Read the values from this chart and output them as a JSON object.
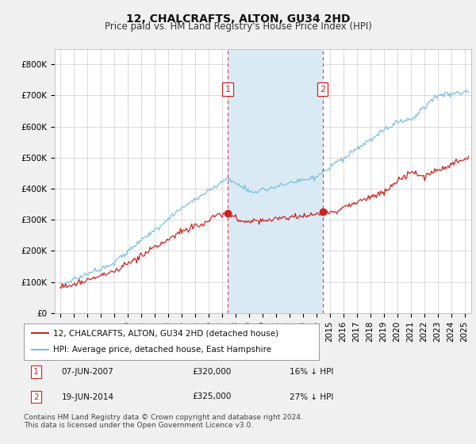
{
  "title": "12, CHALCRAFTS, ALTON, GU34 2HD",
  "subtitle": "Price paid vs. HM Land Registry's House Price Index (HPI)",
  "ylim": [
    0,
    850000
  ],
  "yticks": [
    0,
    100000,
    200000,
    300000,
    400000,
    500000,
    600000,
    700000,
    800000
  ],
  "ytick_labels": [
    "£0",
    "£100K",
    "£200K",
    "£300K",
    "£400K",
    "£500K",
    "£600K",
    "£700K",
    "£800K"
  ],
  "hpi_color": "#7bbfdf",
  "price_color": "#cc2222",
  "shading_color": "#daeaf5",
  "marker1_x": 2007.44,
  "marker2_x": 2014.47,
  "marker1_price": 320000,
  "marker2_price": 325000,
  "legend_label_red": "12, CHALCRAFTS, ALTON, GU34 2HD (detached house)",
  "legend_label_blue": "HPI: Average price, detached house, East Hampshire",
  "footnote": "Contains HM Land Registry data © Crown copyright and database right 2024.\nThis data is licensed under the Open Government Licence v3.0.",
  "background_color": "#f0f0f0",
  "plot_bg_color": "#ffffff",
  "grid_color": "#cccccc",
  "title_fontsize": 10,
  "subtitle_fontsize": 8.5,
  "tick_fontsize": 7.5,
  "legend_fontsize": 7.5,
  "footnote_fontsize": 6.5
}
